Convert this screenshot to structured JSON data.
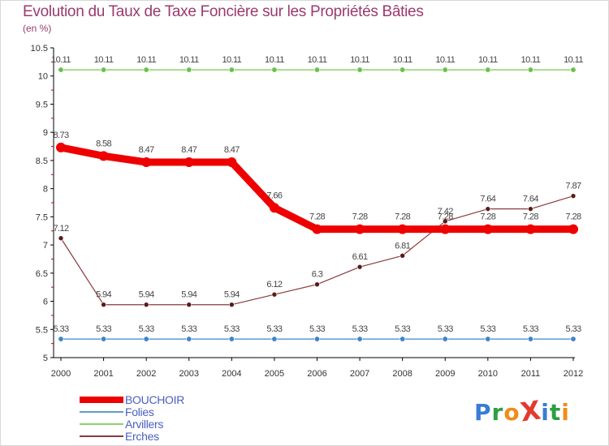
{
  "title": "Evolution du Taux de Taxe Foncière sur les Propriétés Bâties",
  "unit_label": "(en %)",
  "logo": {
    "text": "ProXiti",
    "letters": [
      "P",
      "r",
      "o",
      "X",
      "i",
      "t",
      "i"
    ],
    "colors": [
      "#3a7bd5",
      "#2e9e44",
      "#f08c1a",
      "#e23b2e",
      "#3a7bd5",
      "#2e9e44",
      "#f08c1a"
    ]
  },
  "chart_data": {
    "type": "line",
    "title": "Evolution du Taux de Taxe Foncière sur les Propriétés Bâties",
    "ylabel": "(en %)",
    "xlabel": "",
    "ylim": [
      5,
      10.5
    ],
    "yticks": [
      "5",
      "5.5",
      "6",
      "6.5",
      "7",
      "7.5",
      "8",
      "8.5",
      "9",
      "9.5",
      "10",
      "10.5"
    ],
    "categories": [
      "2000",
      "2001",
      "2002",
      "2003",
      "2004",
      "2005",
      "2006",
      "2007",
      "2008",
      "2009",
      "2010",
      "2011",
      "2012"
    ],
    "series": [
      {
        "name": "BOUCHOIR",
        "color": "#ee0000",
        "marker": "#ee0000",
        "values": [
          8.73,
          8.58,
          8.47,
          8.47,
          8.47,
          7.66,
          7.28,
          7.28,
          7.28,
          7.28,
          7.28,
          7.28,
          7.28
        ],
        "labels": [
          "8.73",
          "8.58",
          "8.47",
          "8.47",
          "8.47",
          "7.66",
          "7.28",
          "7.28",
          "7.28",
          "7.28",
          "7.28",
          "7.28",
          "7.28"
        ]
      },
      {
        "name": "Folies",
        "color": "#5b9bd5",
        "marker": "#3f86c8",
        "values": [
          5.33,
          5.33,
          5.33,
          5.33,
          5.33,
          5.33,
          5.33,
          5.33,
          5.33,
          5.33,
          5.33,
          5.33,
          5.33
        ],
        "labels": [
          "5.33",
          "5.33",
          "5.33",
          "5.33",
          "5.33",
          "5.33",
          "5.33",
          "5.33",
          "5.33",
          "5.33",
          "5.33",
          "5.33",
          "5.33"
        ]
      },
      {
        "name": "Arvillers",
        "color": "#8fd16a",
        "marker": "#6cc04a",
        "values": [
          10.11,
          10.11,
          10.11,
          10.11,
          10.11,
          10.11,
          10.11,
          10.11,
          10.11,
          10.11,
          10.11,
          10.11,
          10.11
        ],
        "labels": [
          "10.11",
          "10.11",
          "10.11",
          "10.11",
          "10.11",
          "10.11",
          "10.11",
          "10.11",
          "10.11",
          "10.11",
          "10.11",
          "10.11",
          "10.11"
        ]
      },
      {
        "name": "Erches",
        "color": "#8b3a3a",
        "marker": "#5a1a1a",
        "values": [
          7.12,
          5.94,
          5.94,
          5.94,
          5.94,
          6.12,
          6.3,
          6.61,
          6.81,
          7.42,
          7.64,
          7.64,
          7.87
        ],
        "labels": [
          "7.12",
          "5.94",
          "5.94",
          "5.94",
          "5.94",
          "6.12",
          "6.3",
          "6.61",
          "6.81",
          "7.42",
          "7.64",
          "7.64",
          "7.87"
        ]
      }
    ],
    "grid": false,
    "legend_position": "bottom-left"
  }
}
